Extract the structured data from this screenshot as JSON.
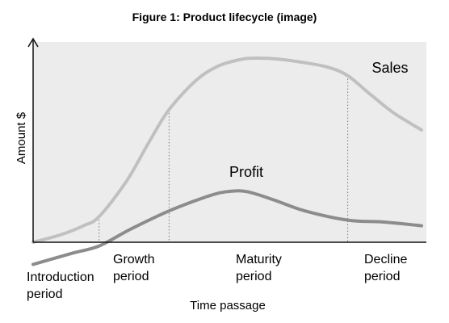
{
  "chart_data": {
    "type": "line",
    "title": "Figure 1: Product lifecycle (image)",
    "xlabel": "Time passage",
    "ylabel": "Amount $",
    "grid": false,
    "axis_ticks": false,
    "xlim": [
      0,
      100
    ],
    "ylim": [
      -12,
      100
    ],
    "periods": [
      {
        "lines": [
          "Introduction",
          "period"
        ],
        "x_start": 0,
        "x_end": 17
      },
      {
        "lines": [
          "Growth",
          "period"
        ],
        "x_start": 17,
        "x_end": 35
      },
      {
        "lines": [
          "Maturity",
          "period"
        ],
        "x_start": 35,
        "x_end": 81
      },
      {
        "lines": [
          "Decline",
          "period"
        ],
        "x_start": 81,
        "x_end": 100
      }
    ],
    "boundaries": [
      17,
      35,
      81
    ],
    "series": [
      {
        "name": "Sales",
        "color": "#c0c0c0",
        "x": [
          0,
          7,
          13,
          17,
          24,
          30,
          35,
          42,
          48,
          54,
          58,
          63,
          70,
          76,
          81,
          87,
          93,
          100
        ],
        "y": [
          0,
          4,
          9,
          14,
          33,
          55,
          72,
          88,
          96,
          99.5,
          100,
          99.5,
          97.5,
          95,
          90.5,
          80,
          70,
          61
        ]
      },
      {
        "name": "Profit",
        "color": "#8c8c8c",
        "x": [
          0,
          10,
          17,
          25,
          35,
          45,
          50,
          55,
          62,
          70,
          81,
          90,
          100
        ],
        "y": [
          -12,
          -6,
          -2,
          7,
          17,
          25,
          27.5,
          27.5,
          23,
          17,
          12,
          11,
          9
        ]
      }
    ]
  }
}
